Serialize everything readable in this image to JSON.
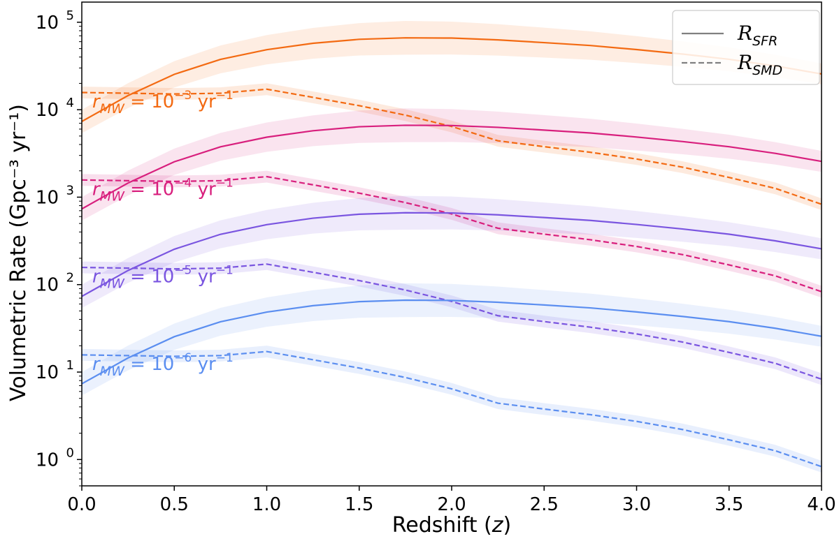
{
  "chart_data": {
    "type": "line",
    "xlabel_text": "Redshift (",
    "xlabel_var": "z",
    "xlabel_close": ")",
    "ylabel": "Volumetric Rate (Gpc⁻³ yr⁻¹)",
    "xlim": [
      0,
      4
    ],
    "ylim": [
      0.5,
      170000
    ],
    "yscale": "log",
    "xticks": [
      "0.0",
      "0.5",
      "1.0",
      "1.5",
      "2.0",
      "2.5",
      "3.0",
      "3.5",
      "4.0"
    ],
    "ytick_exponents": [
      "0",
      "1",
      "2",
      "3",
      "4",
      "5"
    ],
    "ytick_base": "10",
    "grid": false,
    "legend": {
      "placement": "top-right",
      "entries": [
        {
          "style": "solid",
          "symbol": "R",
          "subscript": "SFR"
        },
        {
          "style": "dashed",
          "symbol": "R",
          "subscript": "SMD"
        }
      ]
    },
    "x": [
      0.0,
      0.25,
      0.5,
      0.75,
      1.0,
      1.25,
      1.5,
      1.75,
      2.0,
      2.25,
      2.5,
      2.75,
      3.0,
      3.25,
      3.5,
      3.75,
      4.0
    ],
    "sfr_shape": [
      0.00734,
      0.01451,
      0.02538,
      0.03762,
      0.04853,
      0.05746,
      0.06383,
      0.06637,
      0.06593,
      0.06283,
      0.05848,
      0.05419,
      0.0487,
      0.04321,
      0.03772,
      0.03168,
      0.02565
    ],
    "smd_shape": [
      0.01573,
      0.01543,
      0.01513,
      0.01543,
      0.01717,
      0.01384,
      0.01112,
      0.00867,
      0.00643,
      0.00441,
      0.00378,
      0.00326,
      0.00273,
      0.0022,
      0.00168,
      0.00126,
      0.00083
    ],
    "series": [
      {
        "scale": 1000000,
        "color": "#F36A12",
        "label_base": "r",
        "label_sub": "MW",
        "label_eq": " = 10",
        "label_exp": "−3",
        "label_unit": " yr",
        "label_unit_exp": "−1"
      },
      {
        "scale": 100000,
        "color": "#D81F7D",
        "label_base": "r",
        "label_sub": "MW",
        "label_eq": " = 10",
        "label_exp": "−4",
        "label_unit": " yr",
        "label_unit_exp": "−1"
      },
      {
        "scale": 10000,
        "color": "#7A55E0",
        "label_base": "r",
        "label_sub": "MW",
        "label_eq": " = 10",
        "label_exp": "−5",
        "label_unit": " yr",
        "label_unit_exp": "−1"
      },
      {
        "scale": 1000,
        "color": "#5B8EF0",
        "label_base": "r",
        "label_sub": "MW",
        "label_eq": " = 10",
        "label_exp": "−6",
        "label_unit": " yr",
        "label_unit_exp": "−1"
      }
    ]
  }
}
